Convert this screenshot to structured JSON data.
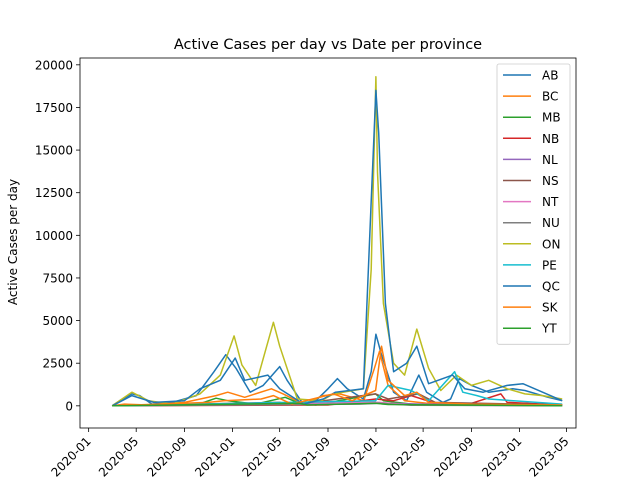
{
  "chart_data": {
    "type": "line",
    "title": "Active Cases per day vs Date per province",
    "xlabel": "",
    "ylabel": "Active Cases per day",
    "x_tick_labels": [
      "2020-01",
      "2020-05",
      "2020-09",
      "2021-01",
      "2021-05",
      "2021-09",
      "2022-01",
      "2022-05",
      "2022-09",
      "2023-01",
      "2023-05"
    ],
    "y_ticks": [
      0,
      2500,
      5000,
      7500,
      10000,
      12500,
      15000,
      17500,
      20000
    ],
    "xlim": [
      "2019-12-10",
      "2023-05-25"
    ],
    "ylim": [
      -1300,
      20400
    ],
    "grid": false,
    "legend_position": "top-right",
    "series": [
      {
        "name": "AB",
        "color": "#1f77b4",
        "points": [
          [
            "2020-03-01",
            0
          ],
          [
            "2020-03-20",
            300
          ],
          [
            "2020-04-20",
            700
          ],
          [
            "2020-05-10",
            600
          ],
          [
            "2020-06-10",
            100
          ],
          [
            "2020-08-01",
            200
          ],
          [
            "2020-10-01",
            600
          ],
          [
            "2020-11-15",
            2000
          ],
          [
            "2020-12-15",
            3000
          ],
          [
            "2021-01-10",
            2200
          ],
          [
            "2021-02-15",
            800
          ],
          [
            "2021-03-20",
            1200
          ],
          [
            "2021-05-01",
            2300
          ],
          [
            "2021-05-20",
            1500
          ],
          [
            "2021-06-30",
            100
          ],
          [
            "2021-08-01",
            300
          ],
          [
            "2021-09-01",
            1000
          ],
          [
            "2021-09-25",
            1600
          ],
          [
            "2021-10-20",
            1000
          ],
          [
            "2021-11-30",
            400
          ],
          [
            "2021-12-20",
            2000
          ],
          [
            "2022-01-01",
            4200
          ],
          [
            "2022-01-15",
            3000
          ],
          [
            "2022-02-15",
            800
          ],
          [
            "2022-03-20",
            300
          ],
          [
            "2022-04-20",
            1800
          ],
          [
            "2022-05-10",
            800
          ],
          [
            "2022-06-20",
            200
          ],
          [
            "2022-07-10",
            400
          ],
          [
            "2022-08-01",
            1600
          ],
          [
            "2022-09-01",
            1200
          ],
          [
            "2022-10-15",
            800
          ],
          [
            "2022-12-15",
            1000
          ],
          [
            "2023-01-15",
            900
          ],
          [
            "2023-03-15",
            500
          ],
          [
            "2023-04-20",
            300
          ]
        ]
      },
      {
        "name": "BC",
        "color": "#ff7f0e",
        "points": [
          [
            "2020-03-01",
            0
          ],
          [
            "2020-04-01",
            100
          ],
          [
            "2020-06-01",
            50
          ],
          [
            "2020-09-01",
            200
          ],
          [
            "2020-11-20",
            600
          ],
          [
            "2020-12-20",
            800
          ],
          [
            "2021-02-01",
            500
          ],
          [
            "2021-04-10",
            1000
          ],
          [
            "2021-05-10",
            700
          ],
          [
            "2021-06-30",
            100
          ],
          [
            "2021-08-20",
            600
          ],
          [
            "2021-10-01",
            700
          ],
          [
            "2021-12-01",
            300
          ],
          [
            "2021-12-28",
            2200
          ],
          [
            "2022-01-10",
            3200
          ],
          [
            "2022-02-01",
            1200
          ],
          [
            "2022-03-15",
            300
          ],
          [
            "2022-04-20",
            200
          ],
          [
            "2022-06-01",
            100
          ],
          [
            "2022-09-01",
            100
          ],
          [
            "2023-01-01",
            50
          ],
          [
            "2023-04-20",
            50
          ]
        ]
      },
      {
        "name": "MB",
        "color": "#2ca02c",
        "points": [
          [
            "2020-03-01",
            0
          ],
          [
            "2020-10-01",
            50
          ],
          [
            "2020-11-20",
            450
          ],
          [
            "2020-12-20",
            300
          ],
          [
            "2021-03-01",
            100
          ],
          [
            "2021-05-15",
            500
          ],
          [
            "2021-06-15",
            200
          ],
          [
            "2021-08-01",
            50
          ],
          [
            "2021-12-31",
            700
          ],
          [
            "2022-01-20",
            300
          ],
          [
            "2022-04-01",
            100
          ],
          [
            "2023-04-20",
            50
          ]
        ]
      },
      {
        "name": "NB",
        "color": "#d62728",
        "points": [
          [
            "2020-03-01",
            0
          ],
          [
            "2021-09-01",
            50
          ],
          [
            "2021-12-31",
            400
          ],
          [
            "2022-02-15",
            300
          ],
          [
            "2022-04-01",
            600
          ],
          [
            "2022-06-01",
            150
          ],
          [
            "2022-09-01",
            150
          ],
          [
            "2022-11-15",
            700
          ],
          [
            "2022-12-01",
            200
          ],
          [
            "2023-04-20",
            50
          ]
        ]
      },
      {
        "name": "NL",
        "color": "#9467bd",
        "points": [
          [
            "2020-03-01",
            0
          ],
          [
            "2021-12-31",
            200
          ],
          [
            "2022-02-01",
            150
          ],
          [
            "2022-05-01",
            100
          ],
          [
            "2023-04-20",
            20
          ]
        ]
      },
      {
        "name": "NS",
        "color": "#8c564b",
        "points": [
          [
            "2020-03-01",
            0
          ],
          [
            "2021-05-01",
            200
          ],
          [
            "2021-06-01",
            50
          ],
          [
            "2021-12-31",
            700
          ],
          [
            "2022-02-01",
            400
          ],
          [
            "2022-04-20",
            700
          ],
          [
            "2022-06-01",
            200
          ],
          [
            "2023-04-20",
            50
          ]
        ]
      },
      {
        "name": "NT",
        "color": "#e377c2",
        "points": [
          [
            "2020-03-01",
            0
          ],
          [
            "2021-09-15",
            150
          ],
          [
            "2022-01-10",
            200
          ],
          [
            "2022-04-01",
            50
          ],
          [
            "2023-04-20",
            10
          ]
        ]
      },
      {
        "name": "NU",
        "color": "#7f7f7f",
        "points": [
          [
            "2020-03-01",
            0
          ],
          [
            "2021-11-20",
            100
          ],
          [
            "2022-01-10",
            150
          ],
          [
            "2022-04-01",
            30
          ],
          [
            "2023-04-20",
            10
          ]
        ]
      },
      {
        "name": "ON",
        "color": "#bcbd22",
        "points": [
          [
            "2020-03-01",
            0
          ],
          [
            "2020-04-20",
            800
          ],
          [
            "2020-06-01",
            300
          ],
          [
            "2020-08-01",
            100
          ],
          [
            "2020-10-10",
            700
          ],
          [
            "2020-12-01",
            1800
          ],
          [
            "2021-01-05",
            4100
          ],
          [
            "2021-01-25",
            2400
          ],
          [
            "2021-03-01",
            1200
          ],
          [
            "2021-04-15",
            4900
          ],
          [
            "2021-05-01",
            3500
          ],
          [
            "2021-06-15",
            400
          ],
          [
            "2021-08-15",
            300
          ],
          [
            "2021-09-15",
            700
          ],
          [
            "2021-11-30",
            1000
          ],
          [
            "2021-12-20",
            8000
          ],
          [
            "2022-01-01",
            19300
          ],
          [
            "2022-01-05",
            13700
          ],
          [
            "2022-01-20",
            6000
          ],
          [
            "2022-02-15",
            2500
          ],
          [
            "2022-03-15",
            1800
          ],
          [
            "2022-04-15",
            4500
          ],
          [
            "2022-05-15",
            2200
          ],
          [
            "2022-06-15",
            900
          ],
          [
            "2022-07-25",
            1800
          ],
          [
            "2022-09-01",
            1200
          ],
          [
            "2022-10-15",
            1500
          ],
          [
            "2022-12-01",
            1000
          ],
          [
            "2023-01-15",
            700
          ],
          [
            "2023-03-01",
            600
          ],
          [
            "2023-04-20",
            400
          ]
        ]
      },
      {
        "name": "PE",
        "color": "#17becf",
        "points": [
          [
            "2020-03-01",
            0
          ],
          [
            "2021-12-31",
            300
          ],
          [
            "2022-02-01",
            1200
          ],
          [
            "2022-04-01",
            900
          ],
          [
            "2022-05-15",
            300
          ],
          [
            "2022-07-20",
            2000
          ],
          [
            "2022-08-10",
            800
          ],
          [
            "2022-09-15",
            600
          ],
          [
            "2022-10-15",
            400
          ],
          [
            "2023-04-20",
            100
          ]
        ]
      },
      {
        "name": "QC",
        "color": "#1f77b4",
        "points": [
          [
            "2020-03-01",
            0
          ],
          [
            "2020-04-20",
            600
          ],
          [
            "2020-06-15",
            200
          ],
          [
            "2020-09-01",
            300
          ],
          [
            "2020-10-10",
            1000
          ],
          [
            "2020-12-01",
            1500
          ],
          [
            "2021-01-08",
            2800
          ],
          [
            "2021-02-01",
            1500
          ],
          [
            "2021-04-01",
            1800
          ],
          [
            "2021-05-01",
            1000
          ],
          [
            "2021-07-01",
            100
          ],
          [
            "2021-08-20",
            400
          ],
          [
            "2021-09-20",
            800
          ],
          [
            "2021-11-30",
            1000
          ],
          [
            "2021-12-20",
            12000
          ],
          [
            "2022-01-01",
            18500
          ],
          [
            "2022-01-08",
            16000
          ],
          [
            "2022-01-25",
            6000
          ],
          [
            "2022-02-15",
            2000
          ],
          [
            "2022-03-20",
            2500
          ],
          [
            "2022-04-15",
            3500
          ],
          [
            "2022-05-15",
            1300
          ],
          [
            "2022-07-15",
            1800
          ],
          [
            "2022-08-15",
            1000
          ],
          [
            "2022-10-01",
            800
          ],
          [
            "2022-12-01",
            1200
          ],
          [
            "2023-01-10",
            1300
          ],
          [
            "2023-03-01",
            800
          ],
          [
            "2023-04-20",
            300
          ]
        ]
      },
      {
        "name": "SK",
        "color": "#ff7f0e",
        "points": [
          [
            "2020-03-01",
            0
          ],
          [
            "2020-11-01",
            200
          ],
          [
            "2020-12-10",
            300
          ],
          [
            "2021-03-15",
            400
          ],
          [
            "2021-04-15",
            600
          ],
          [
            "2021-06-01",
            100
          ],
          [
            "2021-09-15",
            700
          ],
          [
            "2021-11-01",
            300
          ],
          [
            "2021-12-31",
            900
          ],
          [
            "2022-01-15",
            3500
          ],
          [
            "2022-02-01",
            1500
          ],
          [
            "2022-03-15",
            600
          ],
          [
            "2022-04-15",
            800
          ],
          [
            "2022-05-15",
            200
          ],
          [
            "2022-09-01",
            100
          ],
          [
            "2023-04-20",
            50
          ]
        ]
      },
      {
        "name": "YT",
        "color": "#2ca02c",
        "points": [
          [
            "2020-03-01",
            0
          ],
          [
            "2021-06-20",
            150
          ],
          [
            "2021-07-10",
            50
          ],
          [
            "2021-12-31",
            150
          ],
          [
            "2022-02-01",
            80
          ],
          [
            "2023-04-20",
            10
          ]
        ]
      }
    ]
  }
}
